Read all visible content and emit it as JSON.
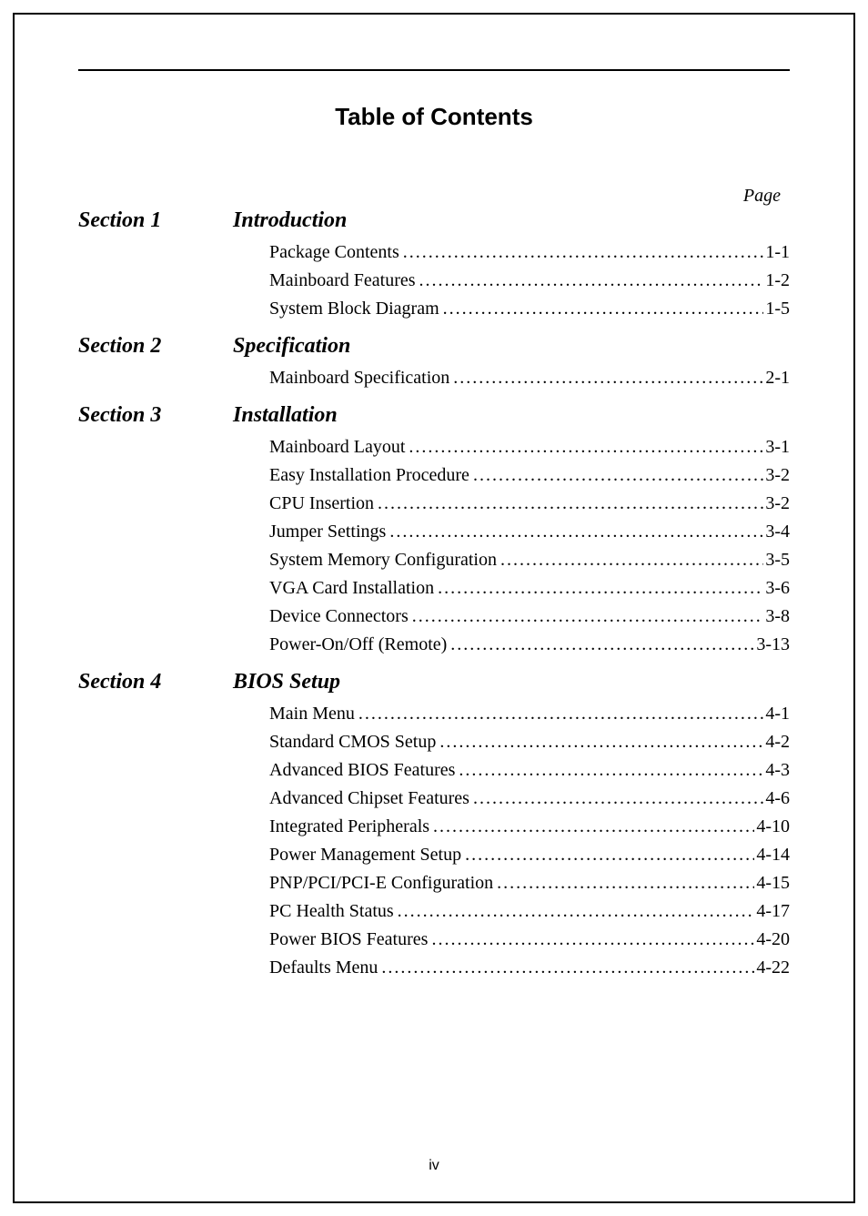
{
  "title": "Table of Contents",
  "page_label": "Page",
  "footer_page": "iv",
  "typography": {
    "title_font": "Arial",
    "title_weight": 900,
    "title_size_pt": 20,
    "body_font": "Times New Roman",
    "body_size_pt": 15,
    "section_size_pt": 18,
    "footer_font": "Arial",
    "footer_size_pt": 12
  },
  "colors": {
    "text": "#000000",
    "background": "#ffffff",
    "rule": "#000000"
  },
  "sections": [
    {
      "label": "Section 1",
      "title": "Introduction",
      "items": [
        {
          "label": "Package Contents",
          "page": "1-1"
        },
        {
          "label": "Mainboard Features",
          "page": "1-2"
        },
        {
          "label": "System Block Diagram",
          "page": "1-5"
        }
      ]
    },
    {
      "label": "Section 2",
      "title": "Specification",
      "items": [
        {
          "label": "Mainboard Specification",
          "page": "2-1"
        }
      ]
    },
    {
      "label": "Section 3",
      "title": "Installation",
      "items": [
        {
          "label": "Mainboard Layout",
          "page": "3-1"
        },
        {
          "label": "Easy Installation Procedure",
          "page": "3-2"
        },
        {
          "label": "CPU Insertion",
          "page": "3-2"
        },
        {
          "label": "Jumper Settings",
          "page": "3-4"
        },
        {
          "label": "System Memory Configuration",
          "page": "3-5"
        },
        {
          "label": "VGA Card Installation",
          "page": "3-6"
        },
        {
          "label": "Device Connectors",
          "page": "3-8"
        },
        {
          "label": "Power-On/Off (Remote)",
          "page": "3-13"
        }
      ]
    },
    {
      "label": "Section 4",
      "title": "BIOS Setup",
      "items": [
        {
          "label": "Main Menu",
          "page": "4-1"
        },
        {
          "label": "Standard CMOS Setup",
          "page": "4-2"
        },
        {
          "label": "Advanced BIOS Features",
          "page": "4-3"
        },
        {
          "label": "Advanced Chipset Features",
          "page": "4-6"
        },
        {
          "label": "Integrated Peripherals",
          "page": "4-10"
        },
        {
          "label": "Power Management Setup",
          "page": "4-14"
        },
        {
          "label": "PNP/PCI/PCI-E Configuration",
          "page": "4-15"
        },
        {
          "label": "PC Health Status",
          "page": "4-17"
        },
        {
          "label": "Power BIOS Features",
          "page": "4-20"
        },
        {
          "label": "Defaults Menu",
          "page": "4-22"
        }
      ]
    }
  ]
}
